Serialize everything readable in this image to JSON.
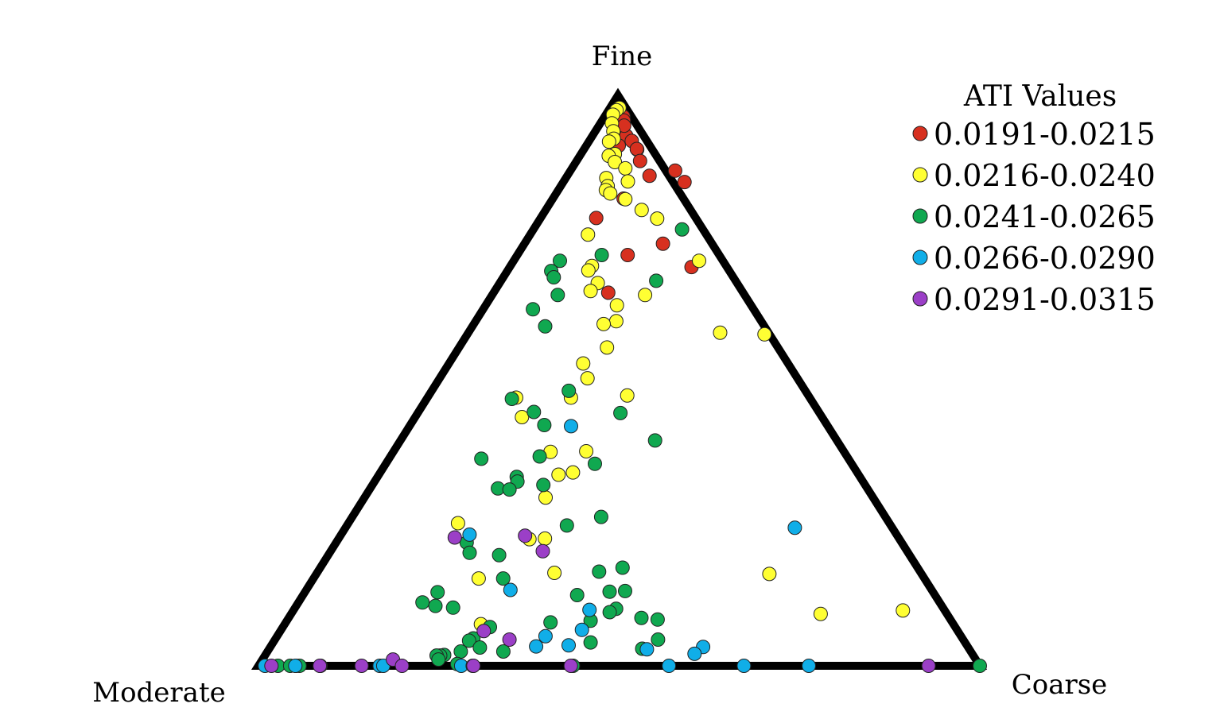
{
  "chart_data": {
    "type": "scatter",
    "subtype": "ternary",
    "title": "",
    "vertices": {
      "top": "Fine",
      "left": "Moderate",
      "right": "Coarse"
    },
    "coordinate_note": "fine, moderate, coarse fractions (sum = 1)",
    "legend": {
      "title": "ATI Values",
      "placement": "top-right",
      "entries": [
        {
          "label": "0.0191-0.0215",
          "color": "#d7301f"
        },
        {
          "label": "0.0216-0.0240",
          "color": "#ffff33"
        },
        {
          "label": "0.0241-0.0265",
          "color": "#10a850"
        },
        {
          "label": "0.0266-0.0290",
          "color": "#10aee8"
        },
        {
          "label": "0.0291-0.0315",
          "color": "#9b3fc7"
        }
      ]
    },
    "series": [
      {
        "name": "0.0191-0.0215",
        "points": [
          [
            0.963,
            0.011,
            0.026
          ],
          [
            0.929,
            0.024,
            0.047
          ],
          [
            0.956,
            0.014,
            0.03
          ],
          [
            0.947,
            0.018,
            0.035
          ],
          [
            0.92,
            0.021,
            0.059
          ],
          [
            0.905,
            0.021,
            0.074
          ],
          [
            0.906,
            0.021,
            0.073
          ],
          [
            0.912,
            0.043,
            0.045
          ],
          [
            0.885,
            0.027,
            0.088
          ],
          [
            0.859,
            0.027,
            0.114
          ],
          [
            0.868,
            -0.013,
            0.145
          ],
          [
            0.848,
            -0.016,
            0.168
          ],
          [
            0.819,
            0.083,
            0.098
          ],
          [
            0.785,
            0.138,
            0.077
          ],
          [
            0.74,
            0.068,
            0.192
          ],
          [
            0.72,
            0.127,
            0.153
          ],
          [
            0.699,
            0.049,
            0.252
          ],
          [
            0.654,
            0.187,
            0.159
          ]
        ]
      },
      {
        "name": "0.0216-0.0240",
        "points": [
          [
            0.978,
            0.009,
            0.013
          ],
          [
            0.974,
            0.015,
            0.011
          ],
          [
            0.966,
            0.024,
            0.01
          ],
          [
            0.951,
            0.033,
            0.016
          ],
          [
            0.937,
            0.038,
            0.025
          ],
          [
            0.924,
            0.044,
            0.032
          ],
          [
            0.919,
            0.053,
            0.028
          ],
          [
            0.897,
            0.056,
            0.047
          ],
          [
            0.894,
            0.066,
            0.04
          ],
          [
            0.883,
            0.063,
            0.054
          ],
          [
            0.872,
            0.054,
            0.074
          ],
          [
            0.855,
            0.089,
            0.056
          ],
          [
            0.849,
            0.062,
            0.089
          ],
          [
            0.841,
            0.094,
            0.065
          ],
          [
            0.834,
            0.1,
            0.066
          ],
          [
            0.828,
            0.097,
            0.075
          ],
          [
            0.818,
            0.081,
            0.101
          ],
          [
            0.799,
            0.068,
            0.133
          ],
          [
            0.784,
            0.054,
            0.162
          ],
          [
            0.756,
            0.164,
            0.08
          ],
          [
            0.71,
            0.033,
            0.257
          ],
          [
            0.701,
            0.186,
            0.113
          ],
          [
            0.693,
            0.195,
            0.112
          ],
          [
            0.671,
            0.193,
            0.136
          ],
          [
            0.65,
            0.138,
            0.212
          ],
          [
            0.657,
            0.21,
            0.133
          ],
          [
            0.632,
            0.186,
            0.182
          ],
          [
            0.604,
            0.201,
            0.195
          ],
          [
            0.599,
            0.221,
            0.18
          ],
          [
            0.584,
            0.067,
            0.349
          ],
          [
            0.581,
            0.007,
            0.412
          ],
          [
            0.558,
            0.237,
            0.205
          ],
          [
            0.53,
            0.284,
            0.186
          ],
          [
            0.504,
            0.291,
            0.205
          ],
          [
            0.47,
            0.331,
            0.199
          ],
          [
            0.47,
            0.407,
            0.123
          ],
          [
            0.474,
            0.251,
            0.275
          ],
          [
            0.436,
            0.416,
            0.148
          ],
          [
            0.376,
            0.357,
            0.267
          ],
          [
            0.375,
            0.407,
            0.218
          ],
          [
            0.339,
            0.394,
            0.267
          ],
          [
            0.335,
            0.416,
            0.249
          ],
          [
            0.295,
            0.454,
            0.251
          ],
          [
            0.25,
            0.598,
            0.152
          ],
          [
            0.222,
            0.513,
            0.265
          ],
          [
            0.223,
            0.491,
            0.286
          ],
          [
            0.161,
            0.211,
            0.628
          ],
          [
            0.163,
            0.508,
            0.329
          ],
          [
            0.153,
            0.618,
            0.229
          ],
          [
            0.097,
            0.058,
            0.845
          ],
          [
            0.091,
            0.175,
            0.734
          ],
          [
            0.073,
            0.655,
            0.272
          ]
        ]
      },
      {
        "name": "0.0241-0.0265",
        "points": [
          [
            0.765,
            0.029,
            0.206
          ],
          [
            0.72,
            0.163,
            0.117
          ],
          [
            0.71,
            0.226,
            0.064
          ],
          [
            0.692,
            0.247,
            0.061
          ],
          [
            0.681,
            0.249,
            0.07
          ],
          [
            0.675,
            0.11,
            0.215
          ],
          [
            0.65,
            0.259,
            0.091
          ],
          [
            0.625,
            0.306,
            0.069
          ],
          [
            0.595,
            0.304,
            0.101
          ],
          [
            0.482,
            0.328,
            0.19
          ],
          [
            0.468,
            0.414,
            0.118
          ],
          [
            0.445,
            0.395,
            0.16
          ],
          [
            0.443,
            0.276,
            0.281
          ],
          [
            0.422,
            0.392,
            0.186
          ],
          [
            0.395,
            0.252,
            0.353
          ],
          [
            0.367,
            0.426,
            0.207
          ],
          [
            0.363,
            0.509,
            0.128
          ],
          [
            0.354,
            0.356,
            0.29
          ],
          [
            0.331,
            0.476,
            0.193
          ],
          [
            0.323,
            0.479,
            0.198
          ],
          [
            0.317,
            0.446,
            0.237
          ],
          [
            0.311,
            0.512,
            0.177
          ],
          [
            0.309,
            0.497,
            0.194
          ],
          [
            0.261,
            0.394,
            0.345
          ],
          [
            0.246,
            0.449,
            0.305
          ],
          [
            0.216,
            0.603,
            0.181
          ],
          [
            0.198,
            0.608,
            0.194
          ],
          [
            0.194,
            0.569,
            0.237
          ],
          [
            0.172,
            0.409,
            0.419
          ],
          [
            0.165,
            0.445,
            0.39
          ],
          [
            0.153,
            0.584,
            0.263
          ],
          [
            0.131,
            0.426,
            0.443
          ],
          [
            0.13,
            0.448,
            0.422
          ],
          [
            0.129,
            0.687,
            0.184
          ],
          [
            0.124,
            0.496,
            0.38
          ],
          [
            0.111,
            0.717,
            0.172
          ],
          [
            0.105,
            0.702,
            0.193
          ],
          [
            0.102,
            0.679,
            0.219
          ],
          [
            0.1,
            0.454,
            0.446
          ],
          [
            0.094,
            0.466,
            0.44
          ],
          [
            0.084,
            0.427,
            0.489
          ],
          [
            0.081,
            0.406,
            0.513
          ],
          [
            0.079,
            0.5,
            0.421
          ],
          [
            0.076,
            0.557,
            0.367
          ],
          [
            0.068,
            0.645,
            0.287
          ],
          [
            0.048,
            0.678,
            0.274
          ],
          [
            0.046,
            0.423,
            0.531
          ],
          [
            0.044,
            0.686,
            0.27
          ],
          [
            0.041,
            0.519,
            0.44
          ],
          [
            0.03,
            0.453,
            0.517
          ],
          [
            0.032,
            0.677,
            0.291
          ],
          [
            0.025,
            0.648,
            0.327
          ],
          [
            0.025,
            0.707,
            0.268
          ],
          [
            0.019,
            0.733,
            0.248
          ],
          [
            0.018,
            0.739,
            0.243
          ],
          [
            0.018,
            0.744,
            0.238
          ],
          [
            0.011,
            0.745,
            0.244
          ],
          [
            0.003,
            0.723,
            0.274
          ],
          [
            0.0,
            0.973,
            0.027
          ],
          [
            0.0,
            0.956,
            0.044
          ],
          [
            0.0,
            0.948,
            0.052
          ],
          [
            0.0,
            0.943,
            0.057
          ],
          [
            0.0,
            0.564,
            0.436
          ],
          [
            0.0,
            0.0,
            1.0
          ]
        ]
      },
      {
        "name": "0.0266-0.0290",
        "points": [
          [
            0.42,
            0.356,
            0.224
          ],
          [
            0.242,
            0.135,
            0.623
          ],
          [
            0.23,
            0.592,
            0.178
          ],
          [
            0.133,
            0.584,
            0.283
          ],
          [
            0.098,
            0.492,
            0.41
          ],
          [
            0.063,
            0.52,
            0.417
          ],
          [
            0.052,
            0.576,
            0.372
          ],
          [
            0.036,
            0.552,
            0.412
          ],
          [
            0.034,
            0.598,
            0.368
          ],
          [
            0.033,
            0.367,
            0.6
          ],
          [
            0.029,
            0.447,
            0.524
          ],
          [
            0.021,
            0.385,
            0.594
          ],
          [
            0.0,
            0.991,
            0.009
          ],
          [
            0.0,
            0.949,
            0.051
          ],
          [
            0.0,
            0.914,
            0.086
          ],
          [
            0.0,
            0.832,
            0.168
          ],
          [
            0.0,
            0.827,
            0.173
          ],
          [
            0.0,
            0.719,
            0.281
          ],
          [
            0.0,
            0.703,
            0.297
          ],
          [
            0.0,
            0.431,
            0.569
          ],
          [
            0.0,
            0.327,
            0.673
          ],
          [
            0.0,
            0.237,
            0.763
          ]
        ]
      },
      {
        "name": "0.0291-0.0315",
        "points": [
          [
            0.225,
            0.615,
            0.16
          ],
          [
            0.228,
            0.516,
            0.256
          ],
          [
            0.201,
            0.505,
            0.294
          ],
          [
            0.061,
            0.657,
            0.282
          ],
          [
            0.046,
            0.629,
            0.325
          ],
          [
            0.011,
            0.808,
            0.181
          ],
          [
            0.0,
            0.982,
            0.018
          ],
          [
            0.0,
            0.915,
            0.085
          ],
          [
            0.0,
            0.857,
            0.143
          ],
          [
            0.0,
            0.801,
            0.199
          ],
          [
            0.0,
            0.702,
            0.298
          ],
          [
            0.0,
            0.567,
            0.433
          ],
          [
            0.0,
            0.071,
            0.929
          ]
        ]
      }
    ]
  }
}
